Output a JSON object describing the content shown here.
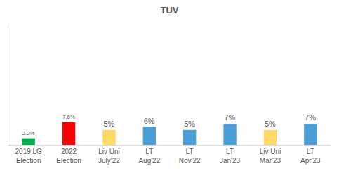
{
  "chart_data": {
    "type": "bar",
    "title": "TUV",
    "categories": [
      "2019 LG\nElection",
      "2022\nElection",
      "Liv Uni\nJuly'22",
      "LT\nAug'22",
      "LT\nNov'22",
      "LT\nJan'23",
      "Liv Uni\nMar'23",
      "LT\nApr'23"
    ],
    "values": [
      2.2,
      7.6,
      5,
      6,
      5,
      7,
      5,
      7
    ],
    "value_labels": [
      "2.2%",
      "7.6%",
      "5%",
      "6%",
      "5%",
      "7%",
      "5%",
      "7%"
    ],
    "colors": [
      "#00b050",
      "#ff0000",
      "#ffd966",
      "#4a9fd8",
      "#4a9fd8",
      "#4a9fd8",
      "#ffd966",
      "#4a9fd8"
    ],
    "ylim": [
      0,
      40
    ],
    "data_labels": true,
    "tick_labels": "x",
    "grid": false
  }
}
